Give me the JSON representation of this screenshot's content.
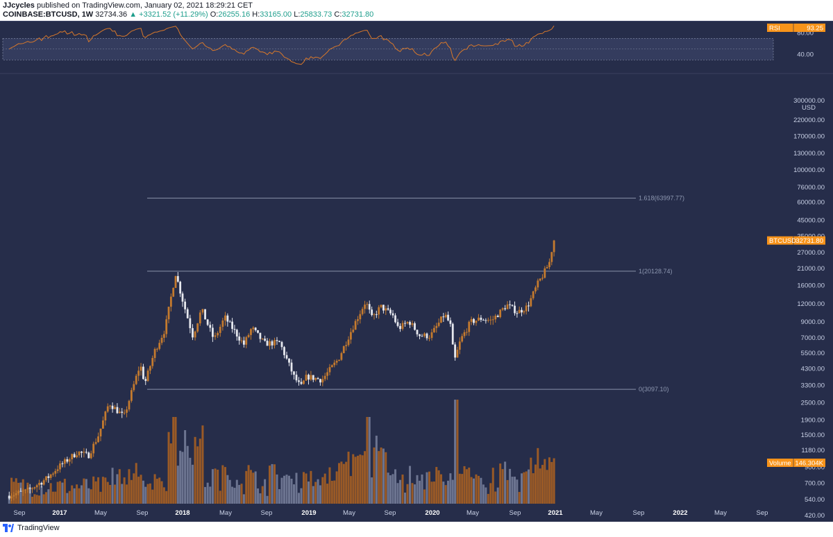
{
  "header": {
    "publisher": "JJcycles",
    "published_text": "published on TradingView.com, January 02, 2021 18:29:21 CET",
    "symbol": "COINBASE:BTCUSD",
    "interval": "1W",
    "last": "32734.36",
    "change": "+3321.52 (+11.29%)",
    "o_label": "O:",
    "o_value": "26255.16",
    "h_label": "H:",
    "h_value": "33165.00",
    "l_label": "L:",
    "l_value": "25833.73",
    "c_label": "C:",
    "c_value": "32731.80"
  },
  "footer": {
    "brand": "TradingView"
  },
  "colors": {
    "background": "#262d4a",
    "bull": "#c47a2e",
    "bear": "#e6e8ee",
    "vol_up": "#9a5a26",
    "vol_down": "#6c7490",
    "rsi_line": "#d8782a",
    "accent_tag": "#f7931a"
  },
  "chart_data": {
    "type": "candlestick",
    "scale": "log",
    "currency": "USD",
    "price_ticks": [
      "300000.00",
      "220000.00",
      "170000.00",
      "130000.00",
      "100000.00",
      "76000.00",
      "60000.00",
      "45000.00",
      "35000.00",
      "27000.00",
      "21000.00",
      "16000.00",
      "12000.00",
      "9000.00",
      "7000.00",
      "5500.00",
      "4300.00",
      "3300.00",
      "2500.00",
      "1900.00",
      "1500.00",
      "1180.00",
      "900.00",
      "700.00",
      "540.00",
      "420.00"
    ],
    "x_ticks": [
      "Sep",
      "2017",
      "May",
      "Sep",
      "2018",
      "May",
      "Sep",
      "2019",
      "May",
      "Sep",
      "2020",
      "May",
      "Sep",
      "2021",
      "May",
      "Sep",
      "2022",
      "May",
      "Sep"
    ],
    "bold_x_ticks": [
      "2017",
      "2018",
      "2019",
      "2020",
      "2021",
      "2022"
    ],
    "fib_levels": [
      {
        "label": "1.618(63997.77)",
        "value": 63997.77
      },
      {
        "label": "1(20128.74)",
        "value": 20128.74
      },
      {
        "label": "0(3097.10)",
        "value": 3097.1
      }
    ],
    "last_price_tag": {
      "name": "BTCUSD",
      "value": "32731.80"
    },
    "volume_tag": {
      "name": "Volume",
      "value": "146.304K"
    },
    "rsi": {
      "name": "RSI",
      "value": "93.25",
      "ticks": [
        "80.00",
        "40.00"
      ],
      "band": [
        30,
        70
      ],
      "mid": 50
    },
    "price_path": [
      [
        "2016-08-01",
        575
      ],
      [
        "2016-10-01",
        620
      ],
      [
        "2016-12-01",
        760
      ],
      [
        "2017-01-02",
        900
      ],
      [
        "2017-03-01",
        1150
      ],
      [
        "2017-04-01",
        1080
      ],
      [
        "2017-05-01",
        1500
      ],
      [
        "2017-06-01",
        2500
      ],
      [
        "2017-07-15",
        2000
      ],
      [
        "2017-09-01",
        4600
      ],
      [
        "2017-09-15",
        3400
      ],
      [
        "2017-10-15",
        5700
      ],
      [
        "2017-11-15",
        8000
      ],
      [
        "2017-12-17",
        19500
      ],
      [
        "2018-02-05",
        7200
      ],
      [
        "2018-03-01",
        11000
      ],
      [
        "2018-04-05",
        6800
      ],
      [
        "2018-05-05",
        9700
      ],
      [
        "2018-07-01",
        6300
      ],
      [
        "2018-07-25",
        8200
      ],
      [
        "2018-09-01",
        6400
      ],
      [
        "2018-10-15",
        6500
      ],
      [
        "2018-11-25",
        3800
      ],
      [
        "2018-12-15",
        3200
      ],
      [
        "2019-01-01",
        3800
      ],
      [
        "2019-02-15",
        3600
      ],
      [
        "2019-04-05",
        5000
      ],
      [
        "2019-05-15",
        8000
      ],
      [
        "2019-06-26",
        12500
      ],
      [
        "2019-07-15",
        9500
      ],
      [
        "2019-08-10",
        11500
      ],
      [
        "2019-09-15",
        10000
      ],
      [
        "2019-10-01",
        8100
      ],
      [
        "2019-11-01",
        9100
      ],
      [
        "2019-12-01",
        7300
      ],
      [
        "2020-01-01",
        7200
      ],
      [
        "2020-02-13",
        10200
      ],
      [
        "2020-03-01",
        8600
      ],
      [
        "2020-03-13",
        4800
      ],
      [
        "2020-04-01",
        6800
      ],
      [
        "2020-05-01",
        9000
      ],
      [
        "2020-06-01",
        9500
      ],
      [
        "2020-07-01",
        9200
      ],
      [
        "2020-08-15",
        11800
      ],
      [
        "2020-09-15",
        10500
      ],
      [
        "2020-10-15",
        11500
      ],
      [
        "2020-11-15",
        16500
      ],
      [
        "2020-12-01",
        19000
      ],
      [
        "2020-12-20",
        23000
      ],
      [
        "2021-01-02",
        32731.8
      ]
    ]
  }
}
